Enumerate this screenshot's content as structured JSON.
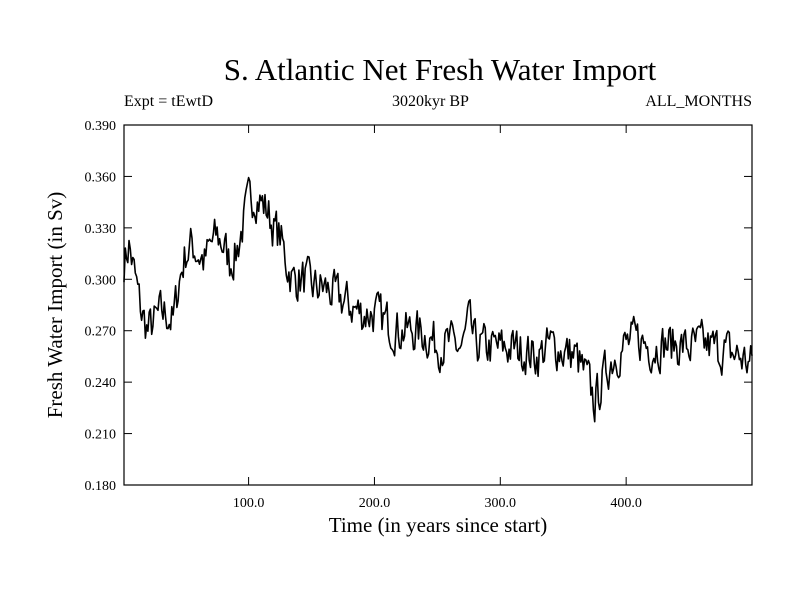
{
  "chart_data": {
    "type": "line",
    "title": "S. Atlantic Net Fresh Water Import",
    "subtitle_left": "Expt = tEwtD",
    "subtitle_center": "3020kyr BP",
    "subtitle_right": "ALL_MONTHS",
    "xlabel": "Time (in years since start)",
    "ylabel": "Fresh Water Import (in Sv)",
    "xlim": [
      1,
      500
    ],
    "ylim": [
      0.18,
      0.39
    ],
    "x_ticks": [
      100,
      200,
      300,
      400
    ],
    "x_tick_labels": [
      "100.0",
      "200.0",
      "300.0",
      "400.0"
    ],
    "y_ticks": [
      0.18,
      0.21,
      0.24,
      0.27,
      0.3,
      0.33,
      0.36,
      0.39
    ],
    "y_tick_labels": [
      "0.180",
      "0.210",
      "0.240",
      "0.270",
      "0.300",
      "0.330",
      "0.360",
      "0.390"
    ],
    "grid": false,
    "series": [
      {
        "name": "Fresh Water Import",
        "anchors_x": [
          1,
          5,
          10,
          15,
          20,
          25,
          30,
          35,
          40,
          45,
          50,
          55,
          60,
          65,
          70,
          75,
          80,
          85,
          90,
          95,
          100,
          105,
          110,
          115,
          120,
          125,
          130,
          135,
          140,
          145,
          150,
          160,
          170,
          180,
          190,
          200,
          210,
          220,
          230,
          240,
          250,
          260,
          270,
          275,
          280,
          290,
          300,
          310,
          320,
          330,
          340,
          350,
          360,
          370,
          375,
          380,
          385,
          390,
          400,
          410,
          420,
          430,
          440,
          450,
          460,
          470,
          480,
          490,
          500
        ],
        "anchors_y": [
          0.31,
          0.32,
          0.3,
          0.28,
          0.27,
          0.275,
          0.28,
          0.28,
          0.275,
          0.3,
          0.315,
          0.32,
          0.315,
          0.31,
          0.32,
          0.325,
          0.32,
          0.31,
          0.315,
          0.33,
          0.345,
          0.35,
          0.345,
          0.34,
          0.33,
          0.325,
          0.31,
          0.3,
          0.3,
          0.3,
          0.295,
          0.295,
          0.29,
          0.285,
          0.28,
          0.28,
          0.275,
          0.27,
          0.27,
          0.268,
          0.262,
          0.262,
          0.26,
          0.275,
          0.262,
          0.26,
          0.26,
          0.26,
          0.258,
          0.255,
          0.262,
          0.258,
          0.255,
          0.24,
          0.228,
          0.238,
          0.248,
          0.255,
          0.262,
          0.265,
          0.26,
          0.262,
          0.262,
          0.26,
          0.262,
          0.26,
          0.258,
          0.255,
          0.25
        ],
        "noise_amplitude": 0.018,
        "random_seed": 7
      }
    ]
  }
}
